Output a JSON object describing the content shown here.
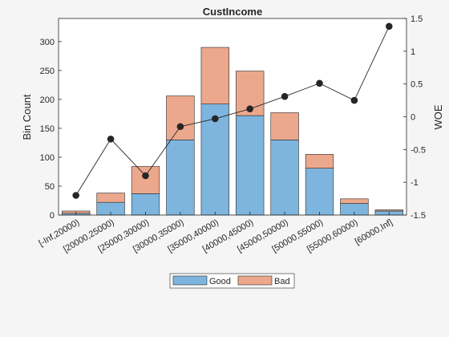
{
  "chart_data": {
    "type": "bar",
    "title": "CustIncome",
    "xlabel": "",
    "ylabel": "Bin Count",
    "ylabel_right": "WOE",
    "categories": [
      "[-Inf,20000)",
      "[20000,25000)",
      "[25000,30000)",
      "[30000,35000)",
      "[35000,40000)",
      "[40000,45000)",
      "[45000,50000)",
      "[50000,55000)",
      "[55000,60000)",
      "[60000,Inf]"
    ],
    "series": [
      {
        "name": "Good",
        "stacked": true,
        "color": "#7eb5de",
        "values": [
          3,
          22,
          37,
          130,
          192,
          172,
          130,
          81,
          20,
          7
        ]
      },
      {
        "name": "Bad",
        "stacked": true,
        "color": "#eca88c",
        "values": [
          4,
          16,
          47,
          76,
          98,
          77,
          47,
          24,
          8,
          2
        ]
      },
      {
        "name": "WOE",
        "type": "line",
        "axis": "right",
        "color": "#262626",
        "values": [
          -1.2,
          -0.34,
          -0.9,
          -0.15,
          -0.03,
          0.12,
          0.31,
          0.51,
          0.25,
          1.38
        ]
      }
    ],
    "ylim": [
      0,
      340
    ],
    "yticks": [
      0,
      50,
      100,
      150,
      200,
      250,
      300
    ],
    "ylim_right": [
      -1.5,
      1.5
    ],
    "yticks_right": [
      "-1.5",
      "-1",
      "-0.5",
      "0",
      "0.5",
      "1",
      "1.5"
    ],
    "legend": {
      "placement": "bottom",
      "entries": [
        "Good",
        "Bad"
      ]
    },
    "grid": false
  }
}
